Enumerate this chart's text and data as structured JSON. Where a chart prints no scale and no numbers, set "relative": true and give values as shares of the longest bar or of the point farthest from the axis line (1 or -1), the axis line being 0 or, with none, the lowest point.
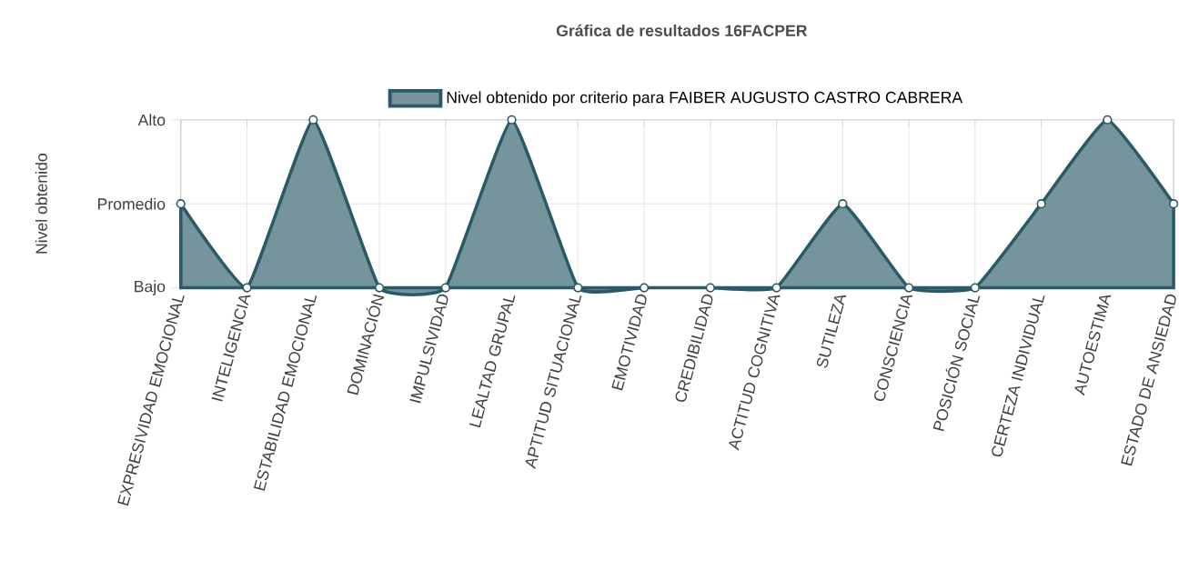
{
  "chart_data": {
    "type": "area",
    "title": "Gráfica de resultados 16FACPER",
    "ylabel": "Nivel obtenido",
    "categories": [
      "EXPRESIVIDAD EMOCIONAL",
      "INTELIGENCIA",
      "ESTABILIDAD EMOCIONAL",
      "DOMINACIÓN",
      "IMPULSIVIDAD",
      "LEALTAD GRUPAL",
      "APTITUD SITUACIONAL",
      "EMOTIVIDAD",
      "CREDIBILIDAD",
      "ACTITUD COGNITIVA",
      "SUTILEZA",
      "CONSCIENCIA",
      "POSICIÓN SOCIAL",
      "CERTEZA INDIVIDUAL",
      "AUTOESTIMA",
      "ESTADO DE ANSIEDAD"
    ],
    "series": [
      {
        "name": "Nivel obtenido por criterio para FAIBER AUGUSTO CASTRO CABRERA",
        "color": "#2a5a66",
        "values": [
          0.5,
          0,
          1,
          0,
          0,
          1,
          0,
          0,
          0,
          0,
          0.5,
          0,
          0,
          0.5,
          1,
          0.5
        ]
      }
    ],
    "relative": true,
    "ref_lines": [
      {
        "axis": "y",
        "value": 0,
        "label": "Bajo",
        "color": "#d9d9d9"
      },
      {
        "axis": "y",
        "value": 0.5,
        "label": "Promedio",
        "color": "#d9d9d9"
      },
      {
        "axis": "y",
        "value": 1,
        "label": "Alto",
        "color": "#d9d9d9"
      }
    ],
    "grid": "x",
    "legend": "top",
    "marker": "circle"
  }
}
